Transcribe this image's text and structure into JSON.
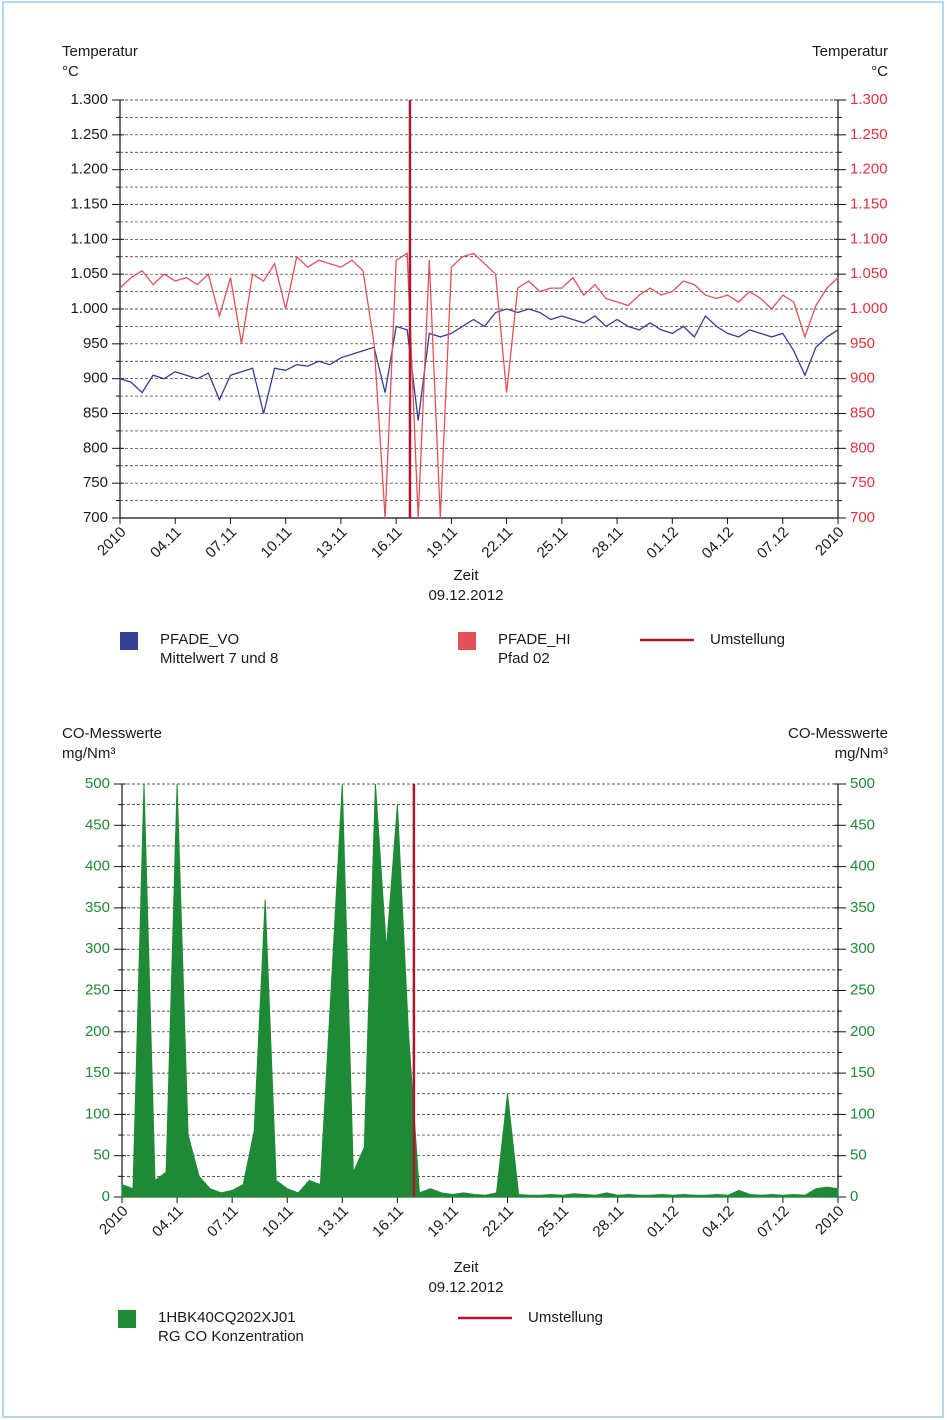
{
  "chart_data": [
    {
      "type": "line",
      "y_label": [
        "Temperatur",
        "°C"
      ],
      "y2_label": [
        "Temperatur",
        "°C"
      ],
      "x_label": [
        "Zeit",
        "09.12.2012"
      ],
      "xlim": [
        0,
        13
      ],
      "xticks": [
        {
          "value": 0,
          "label": "2010"
        },
        {
          "value": 1,
          "label": "04.11"
        },
        {
          "value": 2,
          "label": "07.11"
        },
        {
          "value": 3,
          "label": "10.11"
        },
        {
          "value": 4,
          "label": "13.11"
        },
        {
          "value": 5,
          "label": "16.11"
        },
        {
          "value": 6,
          "label": "19.11"
        },
        {
          "value": 7,
          "label": "22.11"
        },
        {
          "value": 8,
          "label": "25.11"
        },
        {
          "value": 9,
          "label": "28.11"
        },
        {
          "value": 10,
          "label": "01.12"
        },
        {
          "value": 11,
          "label": "04.12"
        },
        {
          "value": 12,
          "label": "07.12"
        },
        {
          "value": 13,
          "label": "2010"
        }
      ],
      "ylim": [
        700,
        1300
      ],
      "yticks": [
        700,
        750,
        800,
        850,
        900,
        950,
        {
          "value": 1000,
          "label": "1.000"
        },
        {
          "value": 1050,
          "label": "1.050"
        },
        {
          "value": 1100,
          "label": "1.100"
        },
        {
          "value": 1150,
          "label": "1.150"
        },
        {
          "value": 1200,
          "label": "1.200"
        },
        {
          "value": 1250,
          "label": "1.250"
        },
        {
          "value": 1300,
          "label": "1.300"
        }
      ],
      "y_minor_ticks": [
        725,
        775,
        825,
        875,
        925,
        975,
        1025,
        1075,
        1125,
        1175,
        1225,
        1275
      ],
      "y_color": "#1a1a1a",
      "y2lim": [
        700,
        1300
      ],
      "y2ticks": [
        700,
        750,
        800,
        850,
        900,
        950,
        {
          "value": 1000,
          "label": "1.000"
        },
        {
          "value": 1050,
          "label": "1.050"
        },
        {
          "value": 1100,
          "label": "1.100"
        },
        {
          "value": 1150,
          "label": "1.150"
        },
        {
          "value": 1200,
          "label": "1.200"
        },
        {
          "value": 1250,
          "label": "1.250"
        },
        {
          "value": 1300,
          "label": "1.300"
        }
      ],
      "y2_color": "#e2323f",
      "grid": true,
      "x": [
        0,
        0.2,
        0.4,
        0.6,
        0.8,
        1,
        1.2,
        1.4,
        1.6,
        1.8,
        2,
        2.2,
        2.4,
        2.6,
        2.8,
        3,
        3.2,
        3.4,
        3.6,
        3.8,
        4,
        4.2,
        4.4,
        4.6,
        4.8,
        5,
        5.2,
        5.4,
        5.6,
        5.8,
        6,
        6.2,
        6.4,
        6.6,
        6.8,
        7,
        7.2,
        7.4,
        7.6,
        7.8,
        8,
        8.2,
        8.4,
        8.6,
        8.8,
        9,
        9.2,
        9.4,
        9.6,
        9.8,
        10,
        10.2,
        10.4,
        10.6,
        10.8,
        11,
        11.2,
        11.4,
        11.6,
        11.8,
        12,
        12.2,
        12.4,
        12.6,
        12.8,
        13
      ],
      "series": [
        {
          "name": "PFADE_VO",
          "description": "Mittelwert 7 und 8",
          "color": "#34408f",
          "values": [
            900,
            895,
            880,
            905,
            900,
            910,
            905,
            900,
            908,
            870,
            905,
            910,
            915,
            850,
            915,
            912,
            920,
            918,
            925,
            920,
            930,
            935,
            940,
            945,
            880,
            975,
            970,
            840,
            965,
            960,
            965,
            975,
            985,
            975,
            995,
            1000,
            995,
            1000,
            995,
            985,
            990,
            985,
            980,
            990,
            975,
            985,
            975,
            970,
            980,
            970,
            965,
            975,
            960,
            990,
            975,
            965,
            960,
            970,
            965,
            960,
            965,
            940,
            905,
            945,
            960,
            970
          ]
        },
        {
          "name": "PFADE_HI",
          "description": "Pfad 02",
          "color": "#e4505a",
          "axis": "y2",
          "values": [
            1030,
            1045,
            1055,
            1035,
            1050,
            1040,
            1045,
            1035,
            1050,
            990,
            1045,
            950,
            1050,
            1040,
            1065,
            1000,
            1075,
            1060,
            1070,
            1065,
            1060,
            1070,
            1055,
            950,
            700,
            1070,
            1080,
            700,
            1070,
            700,
            1060,
            1075,
            1080,
            1065,
            1050,
            880,
            1030,
            1040,
            1025,
            1030,
            1030,
            1045,
            1020,
            1035,
            1015,
            1010,
            1005,
            1020,
            1030,
            1020,
            1025,
            1040,
            1035,
            1020,
            1015,
            1020,
            1010,
            1025,
            1015,
            1000,
            1020,
            1010,
            960,
            1005,
            1030,
            1045
          ]
        }
      ],
      "marker_line": {
        "name": "Umstellung",
        "color": "#b3132b",
        "x": 5.25
      }
    },
    {
      "type": "area",
      "y_label": [
        "CO-Messwerte",
        "mg/Nm³"
      ],
      "y2_label": [
        "CO-Messwerte",
        "mg/Nm³"
      ],
      "x_label": [
        "Zeit",
        "09.12.2012"
      ],
      "xlim": [
        0,
        13
      ],
      "xticks": [
        {
          "value": 0,
          "label": "2010"
        },
        {
          "value": 1,
          "label": "04.11"
        },
        {
          "value": 2,
          "label": "07.11"
        },
        {
          "value": 3,
          "label": "10.11"
        },
        {
          "value": 4,
          "label": "13.11"
        },
        {
          "value": 5,
          "label": "16.11"
        },
        {
          "value": 6,
          "label": "19.11"
        },
        {
          "value": 7,
          "label": "22.11"
        },
        {
          "value": 8,
          "label": "25.11"
        },
        {
          "value": 9,
          "label": "28.11"
        },
        {
          "value": 10,
          "label": "01.12"
        },
        {
          "value": 11,
          "label": "04.12"
        },
        {
          "value": 12,
          "label": "07.12"
        },
        {
          "value": 13,
          "label": "2010"
        }
      ],
      "ylim": [
        0,
        500
      ],
      "yticks": [
        0,
        50,
        100,
        150,
        200,
        250,
        300,
        350,
        400,
        450,
        500
      ],
      "y_minor_ticks": [
        25,
        75,
        125,
        175,
        225,
        275,
        325,
        375,
        425,
        475
      ],
      "y_color": "#1f8a36",
      "y2lim": [
        0,
        500
      ],
      "y2ticks": [
        0,
        50,
        100,
        150,
        200,
        250,
        300,
        350,
        400,
        450,
        500
      ],
      "y2_color": "#1f8a36",
      "grid": true,
      "x": [
        0,
        0.2,
        0.4,
        0.6,
        0.8,
        1,
        1.2,
        1.4,
        1.6,
        1.8,
        2,
        2.2,
        2.4,
        2.6,
        2.8,
        3,
        3.2,
        3.4,
        3.6,
        3.8,
        4,
        4.2,
        4.4,
        4.6,
        4.8,
        5,
        5.2,
        5.4,
        5.6,
        5.8,
        6,
        6.2,
        6.4,
        6.6,
        6.8,
        7,
        7.2,
        7.4,
        7.6,
        7.8,
        8,
        8.2,
        8.4,
        8.6,
        8.8,
        9,
        9.2,
        9.4,
        9.6,
        9.8,
        10,
        10.2,
        10.4,
        10.6,
        10.8,
        11,
        11.2,
        11.4,
        11.6,
        11.8,
        12,
        12.2,
        12.4,
        12.6,
        12.8,
        13
      ],
      "series": [
        {
          "name": "1HBK40CQ202XJ01",
          "description": "RG CO Konzentration",
          "color": "#1f8a36",
          "values": [
            15,
            10,
            500,
            20,
            30,
            500,
            75,
            25,
            10,
            5,
            8,
            15,
            80,
            360,
            20,
            10,
            5,
            20,
            15,
            255,
            500,
            30,
            60,
            500,
            300,
            475,
            200,
            5,
            10,
            5,
            3,
            5,
            3,
            2,
            5,
            125,
            3,
            2,
            2,
            3,
            2,
            4,
            3,
            2,
            5,
            2,
            3,
            2,
            2,
            3,
            2,
            3,
            2,
            2,
            3,
            2,
            8,
            3,
            2,
            3,
            2,
            3,
            2,
            10,
            12,
            10
          ]
        }
      ],
      "marker_line": {
        "name": "Umstellung",
        "color": "#b3132b",
        "x": 5.3
      }
    }
  ]
}
